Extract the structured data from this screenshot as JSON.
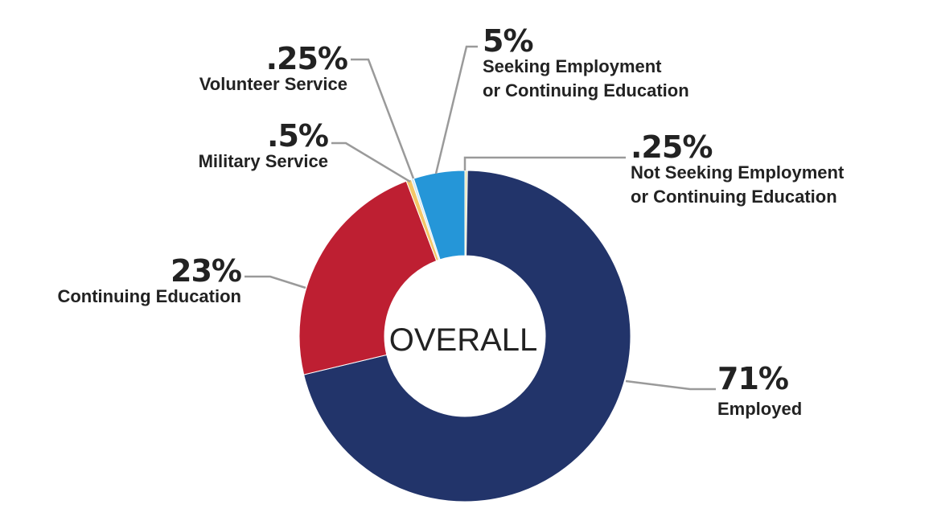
{
  "chart_data": {
    "type": "pie",
    "subtype": "donut",
    "center_label": "OVERALL",
    "slices": [
      {
        "name": "Employed",
        "value_label": "71%",
        "lines": [
          "Employed"
        ],
        "value": 71,
        "color": "#22346a"
      },
      {
        "name": "Continuing Education",
        "value_label": "23%",
        "lines": [
          "Continuing Education"
        ],
        "value": 23,
        "color": "#be1f32"
      },
      {
        "name": "Military Service",
        "value_label": ".5%",
        "lines": [
          "Military Service"
        ],
        "value": 0.5,
        "color": "#f3c667"
      },
      {
        "name": "Volunteer Service",
        "value_label": ".25%",
        "lines": [
          "Volunteer Service"
        ],
        "value": 0.25,
        "color": "#cfe8f5"
      },
      {
        "name": "Seeking Employment or Continuing Education",
        "value_label": "5%",
        "lines": [
          "Seeking Employment",
          "or Continuing Education"
        ],
        "value": 5,
        "color": "#2596d8"
      },
      {
        "name": "Not Seeking Employment or Continuing Education",
        "value_label": ".25%",
        "lines": [
          "Not Seeking Employment",
          "or Continuing Education"
        ],
        "value": 0.25,
        "color": "#e6e4b4"
      }
    ]
  }
}
